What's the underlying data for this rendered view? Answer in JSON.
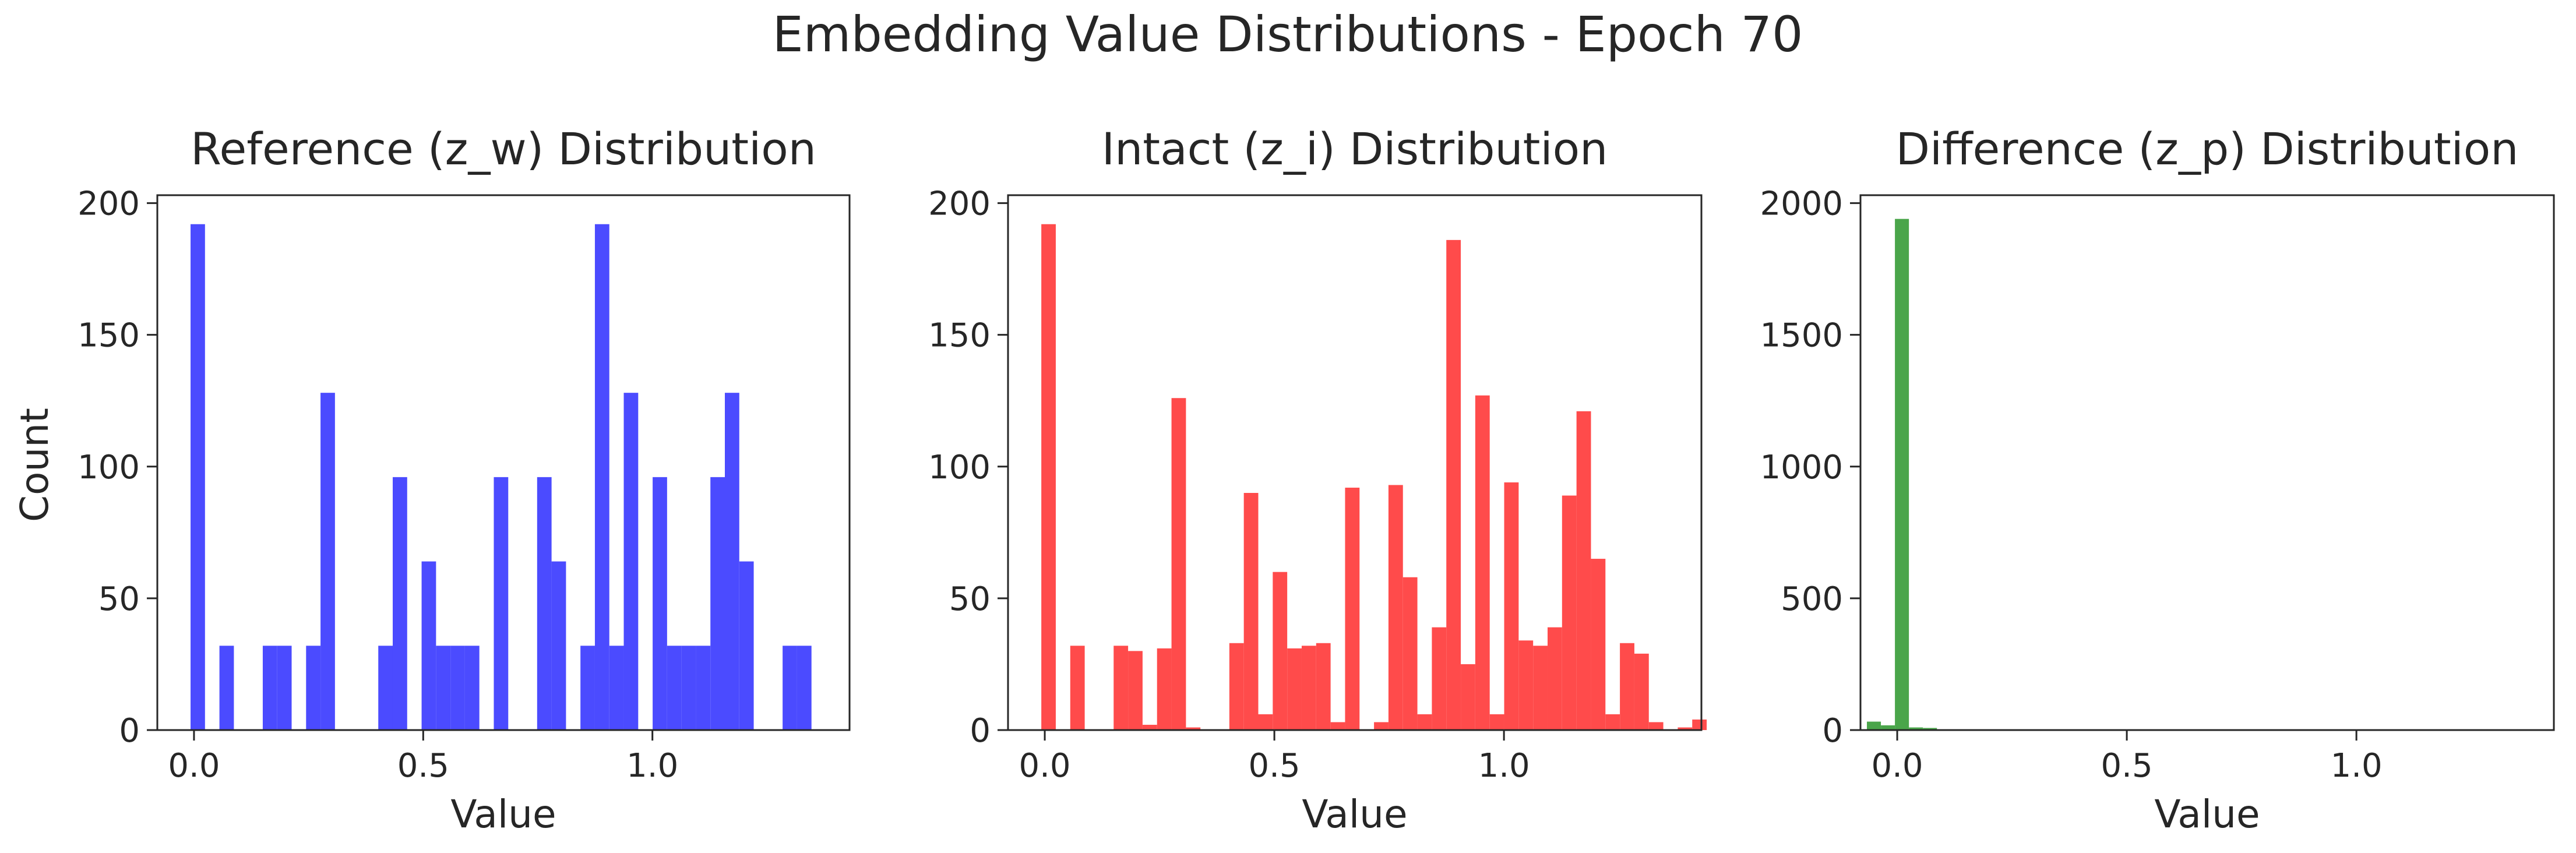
{
  "figure": {
    "title": "Embedding Value Distributions - Epoch 70"
  },
  "chart_data": [
    {
      "type": "bar",
      "title": "Reference (z_w) Distribution",
      "xlabel": "Value",
      "ylabel": "Count",
      "color": "#4b4bff",
      "xlim": [
        -0.08,
        1.43
      ],
      "ylim": [
        0,
        203
      ],
      "xticks": [
        0.0,
        0.5,
        1.0
      ],
      "xtick_labels": [
        "0.0",
        "0.5",
        "1.0"
      ],
      "yticks": [
        0,
        50,
        100,
        150,
        200
      ],
      "ytick_labels": [
        "0",
        "50",
        "100",
        "150",
        "200"
      ],
      "bin_start": -0.0075,
      "bin_width": 0.0315,
      "values": [
        192,
        0,
        32,
        0,
        0,
        32,
        32,
        0,
        32,
        128,
        0,
        0,
        0,
        32,
        96,
        0,
        64,
        32,
        32,
        32,
        0,
        96,
        0,
        0,
        96,
        64,
        0,
        32,
        192,
        32,
        128,
        0,
        96,
        32,
        32,
        32,
        96,
        128,
        64,
        0,
        0,
        32,
        32,
        0,
        0
      ]
    },
    {
      "type": "bar",
      "title": "Intact (z_i) Distribution",
      "xlabel": "Value",
      "ylabel": "",
      "color": "#ff4b4b",
      "xlim": [
        -0.08,
        1.43
      ],
      "ylim": [
        0,
        203
      ],
      "xticks": [
        0.0,
        0.5,
        1.0
      ],
      "xtick_labels": [
        "0.0",
        "0.5",
        "1.0"
      ],
      "yticks": [
        0,
        50,
        100,
        150,
        200
      ],
      "ytick_labels": [
        "0",
        "50",
        "100",
        "150",
        "200"
      ],
      "bin_start": -0.0075,
      "bin_width": 0.0315,
      "values": [
        192,
        0,
        32,
        0,
        0,
        32,
        30,
        2,
        31,
        126,
        1,
        0,
        0,
        33,
        90,
        6,
        60,
        31,
        32,
        33,
        3,
        92,
        0,
        3,
        93,
        58,
        6,
        39,
        186,
        25,
        127,
        6,
        94,
        34,
        32,
        39,
        89,
        121,
        65,
        6,
        33,
        29,
        3,
        0,
        1,
        4
      ]
    },
    {
      "type": "bar",
      "title": "Difference (z_p) Distribution",
      "xlabel": "Value",
      "ylabel": "",
      "color": "#4aa54a",
      "xlim": [
        -0.08,
        1.43
      ],
      "ylim": [
        0,
        2030
      ],
      "xticks": [
        0.0,
        0.5,
        1.0
      ],
      "xtick_labels": [
        "0.0",
        "0.5",
        "1.0"
      ],
      "yticks": [
        0,
        500,
        1000,
        1500,
        2000
      ],
      "ytick_labels": [
        "0",
        "500",
        "1000",
        "1500",
        "2000"
      ],
      "bin_start": -0.066,
      "bin_width": 0.0305,
      "values": [
        32,
        18,
        1940,
        10,
        8
      ]
    }
  ]
}
